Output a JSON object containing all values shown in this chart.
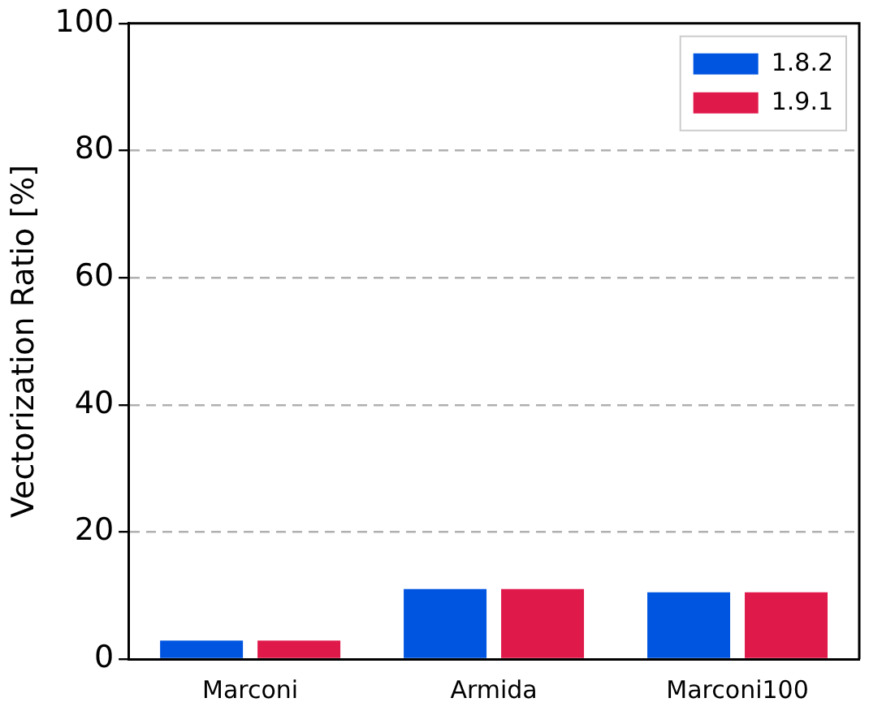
{
  "chart_data": {
    "type": "bar",
    "ylabel": "Vectorization Ratio [%]",
    "categories": [
      "Marconi",
      "Armida",
      "Marconi100"
    ],
    "series": [
      {
        "name": "1.8.2",
        "color": "#0055e0",
        "values": [
          2.9,
          11,
          10.5
        ]
      },
      {
        "name": "1.9.1",
        "color": "#e0194b",
        "values": [
          2.9,
          11,
          10.5
        ]
      }
    ],
    "ylim": [
      0,
      100
    ],
    "yticks": [
      0,
      20,
      40,
      60,
      80,
      100
    ],
    "grid": "y",
    "legend": "top right"
  }
}
